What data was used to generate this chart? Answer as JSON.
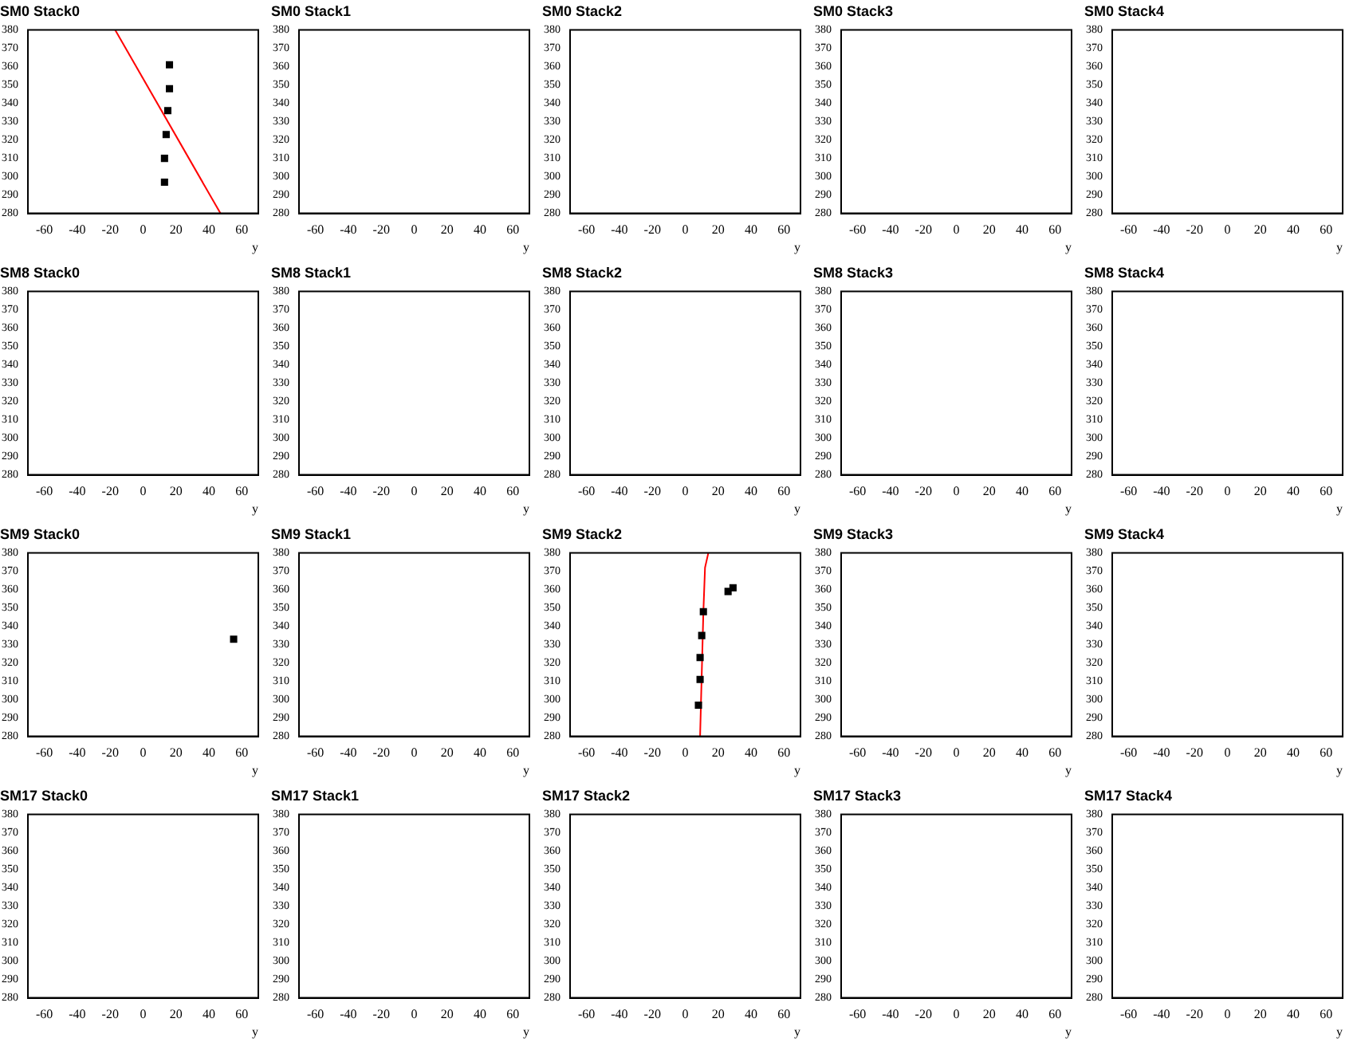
{
  "chart_data": [
    {
      "type": "scatter",
      "title": "SM0 Stack0",
      "xlabel": "y",
      "xlim": [
        -70,
        70
      ],
      "xticks": [
        -60,
        -40,
        -20,
        0,
        20,
        40,
        60
      ],
      "ylim": [
        280,
        380
      ],
      "yticks": [
        280,
        290,
        300,
        310,
        320,
        330,
        340,
        350,
        360,
        370,
        380
      ],
      "series": [
        {
          "type": "scatter",
          "marker": "square",
          "color": "#000000",
          "x": [
            16,
            16,
            15,
            14,
            13,
            13
          ],
          "values": [
            361,
            348,
            336,
            323,
            310,
            297
          ]
        },
        {
          "type": "line",
          "marker": "none",
          "color": "#ff0000",
          "x": [
            -17,
            47
          ],
          "values": [
            380,
            280
          ]
        }
      ]
    },
    {
      "type": "scatter",
      "title": "SM0 Stack1",
      "xlabel": "y",
      "xlim": [
        -70,
        70
      ],
      "xticks": [
        -60,
        -40,
        -20,
        0,
        20,
        40,
        60
      ],
      "ylim": [
        280,
        380
      ],
      "yticks": [
        280,
        290,
        300,
        310,
        320,
        330,
        340,
        350,
        360,
        370,
        380
      ]
    },
    {
      "type": "scatter",
      "title": "SM0 Stack2",
      "xlabel": "y",
      "xlim": [
        -70,
        70
      ],
      "xticks": [
        -60,
        -40,
        -20,
        0,
        20,
        40,
        60
      ],
      "ylim": [
        280,
        380
      ],
      "yticks": [
        280,
        290,
        300,
        310,
        320,
        330,
        340,
        350,
        360,
        370,
        380
      ]
    },
    {
      "type": "scatter",
      "title": "SM0 Stack3",
      "xlabel": "y",
      "xlim": [
        -70,
        70
      ],
      "xticks": [
        -60,
        -40,
        -20,
        0,
        20,
        40,
        60
      ],
      "ylim": [
        280,
        380
      ],
      "yticks": [
        280,
        290,
        300,
        310,
        320,
        330,
        340,
        350,
        360,
        370,
        380
      ]
    },
    {
      "type": "scatter",
      "title": "SM0 Stack4",
      "xlabel": "y",
      "xlim": [
        -70,
        70
      ],
      "xticks": [
        -60,
        -40,
        -20,
        0,
        20,
        40,
        60
      ],
      "ylim": [
        280,
        380
      ],
      "yticks": [
        280,
        290,
        300,
        310,
        320,
        330,
        340,
        350,
        360,
        370,
        380
      ]
    },
    {
      "type": "scatter",
      "title": "SM8 Stack0",
      "xlabel": "y",
      "xlim": [
        -70,
        70
      ],
      "xticks": [
        -60,
        -40,
        -20,
        0,
        20,
        40,
        60
      ],
      "ylim": [
        280,
        380
      ],
      "yticks": [
        280,
        290,
        300,
        310,
        320,
        330,
        340,
        350,
        360,
        370,
        380
      ]
    },
    {
      "type": "scatter",
      "title": "SM8 Stack1",
      "xlabel": "y",
      "xlim": [
        -70,
        70
      ],
      "xticks": [
        -60,
        -40,
        -20,
        0,
        20,
        40,
        60
      ],
      "ylim": [
        280,
        380
      ],
      "yticks": [
        280,
        290,
        300,
        310,
        320,
        330,
        340,
        350,
        360,
        370,
        380
      ]
    },
    {
      "type": "scatter",
      "title": "SM8 Stack2",
      "xlabel": "y",
      "xlim": [
        -70,
        70
      ],
      "xticks": [
        -60,
        -40,
        -20,
        0,
        20,
        40,
        60
      ],
      "ylim": [
        280,
        380
      ],
      "yticks": [
        280,
        290,
        300,
        310,
        320,
        330,
        340,
        350,
        360,
        370,
        380
      ]
    },
    {
      "type": "scatter",
      "title": "SM8 Stack3",
      "xlabel": "y",
      "xlim": [
        -70,
        70
      ],
      "xticks": [
        -60,
        -40,
        -20,
        0,
        20,
        40,
        60
      ],
      "ylim": [
        280,
        380
      ],
      "yticks": [
        280,
        290,
        300,
        310,
        320,
        330,
        340,
        350,
        360,
        370,
        380
      ]
    },
    {
      "type": "scatter",
      "title": "SM8 Stack4",
      "xlabel": "y",
      "xlim": [
        -70,
        70
      ],
      "xticks": [
        -60,
        -40,
        -20,
        0,
        20,
        40,
        60
      ],
      "ylim": [
        280,
        380
      ],
      "yticks": [
        280,
        290,
        300,
        310,
        320,
        330,
        340,
        350,
        360,
        370,
        380
      ]
    },
    {
      "type": "scatter",
      "title": "SM9 Stack0",
      "xlabel": "y",
      "xlim": [
        -70,
        70
      ],
      "xticks": [
        -60,
        -40,
        -20,
        0,
        20,
        40,
        60
      ],
      "ylim": [
        280,
        380
      ],
      "yticks": [
        280,
        290,
        300,
        310,
        320,
        330,
        340,
        350,
        360,
        370,
        380
      ],
      "series": [
        {
          "type": "scatter",
          "marker": "square",
          "color": "#000000",
          "x": [
            55
          ],
          "values": [
            333
          ]
        }
      ]
    },
    {
      "type": "scatter",
      "title": "SM9 Stack1",
      "xlabel": "y",
      "xlim": [
        -70,
        70
      ],
      "xticks": [
        -60,
        -40,
        -20,
        0,
        20,
        40,
        60
      ],
      "ylim": [
        280,
        380
      ],
      "yticks": [
        280,
        290,
        300,
        310,
        320,
        330,
        340,
        350,
        360,
        370,
        380
      ]
    },
    {
      "type": "scatter",
      "title": "SM9 Stack2",
      "xlabel": "y",
      "xlim": [
        -70,
        70
      ],
      "xticks": [
        -60,
        -40,
        -20,
        0,
        20,
        40,
        60
      ],
      "ylim": [
        280,
        380
      ],
      "yticks": [
        280,
        290,
        300,
        310,
        320,
        330,
        340,
        350,
        360,
        370,
        380
      ],
      "series": [
        {
          "type": "scatter",
          "marker": "square",
          "color": "#000000",
          "x": [
            11,
            10,
            9,
            9,
            8,
            26,
            29
          ],
          "values": [
            348,
            335,
            323,
            311,
            297,
            359,
            361
          ]
        },
        {
          "type": "line",
          "marker": "none",
          "color": "#ff0000",
          "x": [
            9,
            11,
            12,
            14
          ],
          "values": [
            280,
            348,
            372,
            380
          ]
        }
      ]
    },
    {
      "type": "scatter",
      "title": "SM9 Stack3",
      "xlabel": "y",
      "xlim": [
        -70,
        70
      ],
      "xticks": [
        -60,
        -40,
        -20,
        0,
        20,
        40,
        60
      ],
      "ylim": [
        280,
        380
      ],
      "yticks": [
        280,
        290,
        300,
        310,
        320,
        330,
        340,
        350,
        360,
        370,
        380
      ]
    },
    {
      "type": "scatter",
      "title": "SM9 Stack4",
      "xlabel": "y",
      "xlim": [
        -70,
        70
      ],
      "xticks": [
        -60,
        -40,
        -20,
        0,
        20,
        40,
        60
      ],
      "ylim": [
        280,
        380
      ],
      "yticks": [
        280,
        290,
        300,
        310,
        320,
        330,
        340,
        350,
        360,
        370,
        380
      ]
    },
    {
      "type": "scatter",
      "title": "SM17 Stack0",
      "xlabel": "y",
      "xlim": [
        -70,
        70
      ],
      "xticks": [
        -60,
        -40,
        -20,
        0,
        20,
        40,
        60
      ],
      "ylim": [
        280,
        380
      ],
      "yticks": [
        280,
        290,
        300,
        310,
        320,
        330,
        340,
        350,
        360,
        370,
        380
      ]
    },
    {
      "type": "scatter",
      "title": "SM17 Stack1",
      "xlabel": "y",
      "xlim": [
        -70,
        70
      ],
      "xticks": [
        -60,
        -40,
        -20,
        0,
        20,
        40,
        60
      ],
      "ylim": [
        280,
        380
      ],
      "yticks": [
        280,
        290,
        300,
        310,
        320,
        330,
        340,
        350,
        360,
        370,
        380
      ]
    },
    {
      "type": "scatter",
      "title": "SM17 Stack2",
      "xlabel": "y",
      "xlim": [
        -70,
        70
      ],
      "xticks": [
        -60,
        -40,
        -20,
        0,
        20,
        40,
        60
      ],
      "ylim": [
        280,
        380
      ],
      "yticks": [
        280,
        290,
        300,
        310,
        320,
        330,
        340,
        350,
        360,
        370,
        380
      ]
    },
    {
      "type": "scatter",
      "title": "SM17 Stack3",
      "xlabel": "y",
      "xlim": [
        -70,
        70
      ],
      "xticks": [
        -60,
        -40,
        -20,
        0,
        20,
        40,
        60
      ],
      "ylim": [
        280,
        380
      ],
      "yticks": [
        280,
        290,
        300,
        310,
        320,
        330,
        340,
        350,
        360,
        370,
        380
      ]
    },
    {
      "type": "scatter",
      "title": "SM17 Stack4",
      "xlabel": "y",
      "xlim": [
        -70,
        70
      ],
      "xticks": [
        -60,
        -40,
        -20,
        0,
        20,
        40,
        60
      ],
      "ylim": [
        280,
        380
      ],
      "yticks": [
        280,
        290,
        300,
        310,
        320,
        330,
        340,
        350,
        360,
        370,
        380
      ]
    }
  ]
}
